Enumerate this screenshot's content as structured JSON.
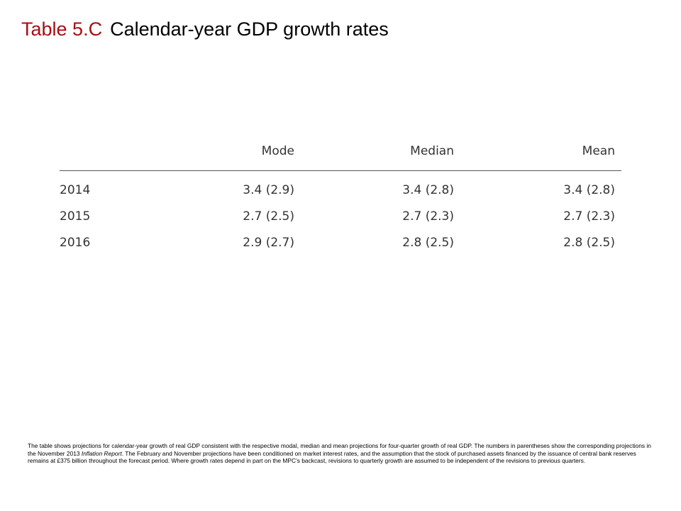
{
  "title": {
    "label": "Table 5.C",
    "text": "Calendar-year GDP growth rates"
  },
  "table": {
    "columns": [
      "",
      "Mode",
      "Median",
      "Mean"
    ],
    "rows": [
      {
        "year": "2014",
        "mode": "3.4 (2.9)",
        "median": "3.4 (2.8)",
        "mean": "3.4 (2.8)"
      },
      {
        "year": "2015",
        "mode": "2.7 (2.5)",
        "median": "2.7 (2.3)",
        "mean": "2.7 (2.3)"
      },
      {
        "year": "2016",
        "mode": "2.9 (2.7)",
        "median": "2.8 (2.5)",
        "mean": "2.8 (2.5)"
      }
    ]
  },
  "notes": {
    "part1": "The table shows projections for calendar-year growth of real GDP consistent with the respective modal, median and mean projections for four-quarter growth of real GDP.  The numbers in parentheses show the corresponding projections in the November 2013 ",
    "italic": "Inflation Report",
    "part2": ".  The February and November projections have been conditioned on market interest rates, and the assumption that the stock of purchased assets financed by the issuance of central bank reserves remains at £375 billion throughout the forecast period.  Where growth rates depend in part on the MPC’s backcast, revisions to quarterly growth are assumed to be independent of the revisions to previous quarters."
  },
  "colors": {
    "title_label": "#a50f15",
    "text": "#000000",
    "table_text": "#333333",
    "rule": "#555555"
  }
}
